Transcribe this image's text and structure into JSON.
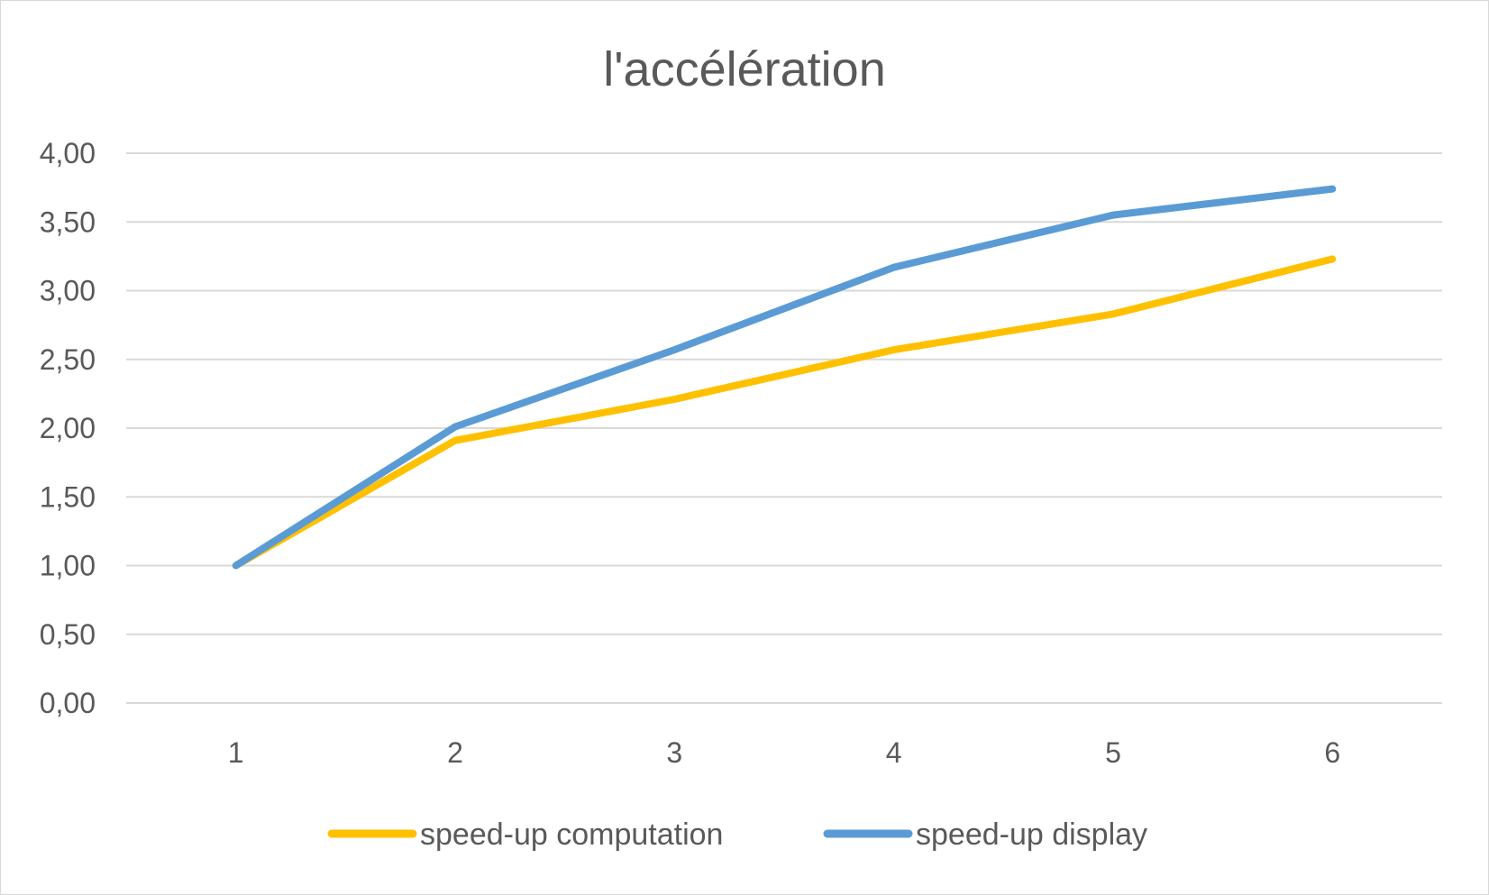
{
  "chart_data": {
    "type": "line",
    "title": "l'accélération",
    "xlabel": "",
    "ylabel": "",
    "categories": [
      "1",
      "2",
      "3",
      "4",
      "5",
      "6"
    ],
    "ylim": [
      0,
      4
    ],
    "y_ticks": [
      "0,00",
      "0,50",
      "1,00",
      "1,50",
      "2,00",
      "2,50",
      "3,00",
      "3,50",
      "4,00"
    ],
    "grid": true,
    "legend_position": "bottom",
    "series": [
      {
        "name": "speed-up computation",
        "color": "#FFC000",
        "values": [
          1.0,
          1.91,
          2.21,
          2.57,
          2.83,
          3.23
        ]
      },
      {
        "name": "speed-up display",
        "color": "#5B9BD5",
        "values": [
          1.0,
          2.01,
          2.57,
          3.17,
          3.55,
          3.74
        ]
      }
    ]
  }
}
